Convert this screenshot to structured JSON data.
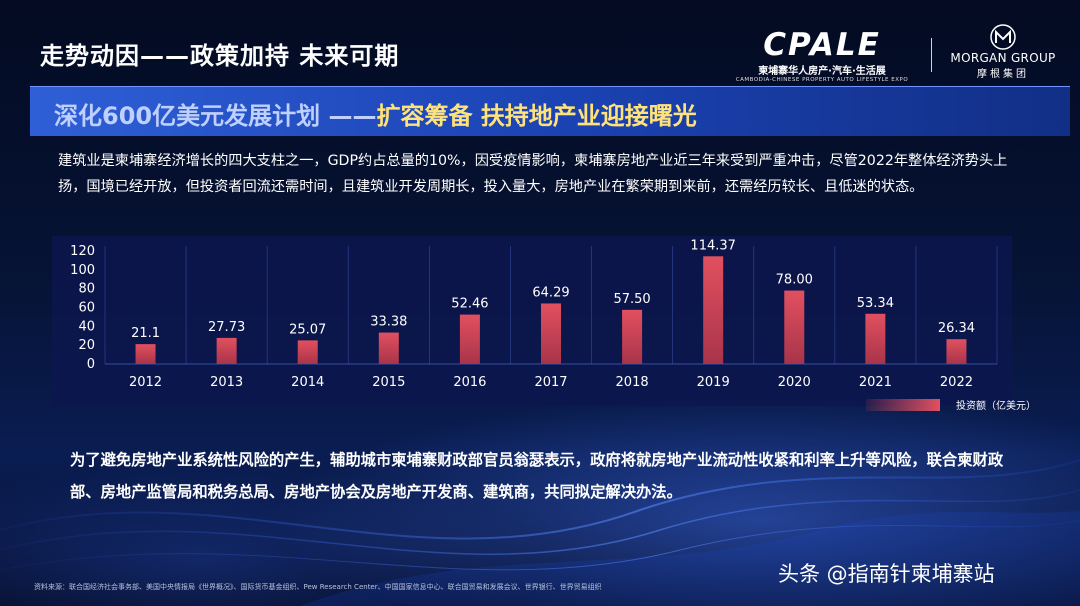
{
  "header": {
    "title": "走势动因——政策加持 未来可期",
    "brand_logo": "CPALE",
    "brand_subtitle": "柬埔寨华人房产·汽车·生活展",
    "brand_subtitle_en": "CAMBODIA-CHINESE PROPERTY AUTO LIFESTYLE EXPO",
    "partner_name": "MORGAN GROUP",
    "partner_name_cn": "摩根集团"
  },
  "banner": {
    "part1": "深化600亿美元发展计划 ——",
    "part2": "扩容筹备 扶持地产业迎接曙光"
  },
  "intro_text": "建筑业是柬埔寨经济增长的四大支柱之一，GDP约占总量的10%，因受疫情影响，柬埔寨房地产业近三年来受到严重冲击，尽管2022年整体经济势头上扬，国境已经开放，但投资者回流还需时间，且建筑业开发周期长，投入量大，房地产业在繁荣期到来前，还需经历较长、且低迷的状态。",
  "chart_data": {
    "type": "bar",
    "categories": [
      "2012",
      "2013",
      "2014",
      "2015",
      "2016",
      "2017",
      "2018",
      "2019",
      "2020",
      "2021",
      "2022"
    ],
    "values": [
      21.1,
      27.73,
      25.07,
      33.38,
      52.46,
      64.29,
      57.5,
      114.37,
      78.0,
      53.34,
      26.34
    ],
    "value_labels": [
      "21.1",
      "27.73",
      "25.07",
      "33.38",
      "52.46",
      "64.29",
      "57.50",
      "114.37",
      "78.00",
      "53.34",
      "26.34"
    ],
    "series_name": "投资额（亿美元）",
    "yticks": [
      "0",
      "20",
      "40",
      "60",
      "80",
      "100",
      "120"
    ],
    "ylim": [
      0,
      120
    ],
    "grid": "vertical",
    "legend": "bottom-right",
    "bar_color": "#e2505f"
  },
  "conclusion_text": "为了避免房地产业系统性风险的产生，辅助城市柬埔寨财政部官员翁瑟表示，政府将就房地产业流动性收紧和利率上升等风险，联合柬财政部、房地产监管局和税务总局、房地产协会及房地产开发商、建筑商，共同拟定解决办法。",
  "footer": {
    "sources": "资料来源：联合国经济社会事务部、美国中央情报局《世界概况》、国际货币基金组织、Pew Research Center、中国国家信息中心、联合国贸易和发展会议、世界银行、世界贸易组织",
    "watermark": "头条 @指南针柬埔寨站"
  }
}
